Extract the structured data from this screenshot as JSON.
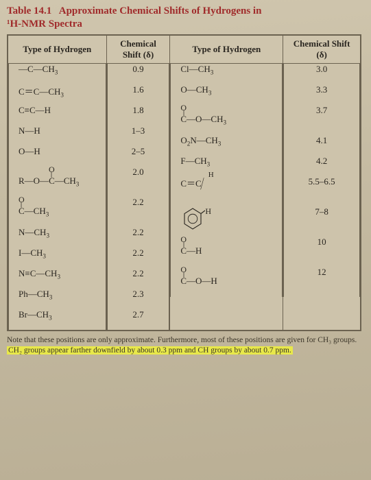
{
  "title_prefix": "Table 14.1",
  "title_rest": "Approximate Chemical Shifts of Hydrogens in",
  "subtitle": "¹H-NMR Spectra",
  "headers": {
    "col1": "Type of Hydrogen",
    "col2": "Chemical Shift (δ)",
    "col3": "Type of Hydrogen",
    "col4": "Chemical Shift (δ)"
  },
  "left": [
    {
      "formula": "—C—CH₃",
      "shift": "0.9"
    },
    {
      "formula": "C＝C—CH₃",
      "shift": "1.6"
    },
    {
      "formula": "C≡C—H",
      "shift": "1.8"
    },
    {
      "formula": "N—H",
      "shift": "1–3"
    },
    {
      "formula": "O—H",
      "shift": "2–5"
    },
    {
      "formula": "R—O—C(=O)—CH₃",
      "shift": "2.0",
      "carbonyl": true,
      "tall": true
    },
    {
      "formula": "C(=O)—CH₃",
      "shift": "2.2",
      "carbonyl": true,
      "tall": true
    },
    {
      "formula": "N—CH₃",
      "shift": "2.2"
    },
    {
      "formula": "I—CH₃",
      "shift": "2.2"
    },
    {
      "formula": "N≡C—CH₃",
      "shift": "2.2"
    },
    {
      "formula": "Ph—CH₃",
      "shift": "2.3"
    },
    {
      "formula": "Br—CH₃",
      "shift": "2.7"
    }
  ],
  "right": [
    {
      "formula": "Cl—CH₃",
      "shift": "3.0"
    },
    {
      "formula": "O—CH₃",
      "shift": "3.3"
    },
    {
      "formula": "C(=O)—O—CH₃",
      "shift": "3.7",
      "carbonyl": true,
      "tall": true
    },
    {
      "formula": "O₂N—CH₃",
      "shift": "4.1"
    },
    {
      "formula": "F—CH₃",
      "shift": "4.2"
    },
    {
      "formula": "vinyl",
      "shift": "5.5–6.5",
      "tall": true
    },
    {
      "formula": "benzene",
      "shift": "7–8",
      "tall": true
    },
    {
      "formula": "C(=O)—H",
      "shift": "10",
      "carbonyl": true,
      "tall": true
    },
    {
      "formula": "C(=O)—O—H",
      "shift": "12",
      "carbonyl": true,
      "tall": true
    }
  ],
  "note_line1": "Note that these positions are only approximate. Furthermore, most of these positions are given for CH₃ groups.",
  "note_hl": "CH₂ groups appear farther downfield by about 0.3 ppm and CH groups by about 0.7 ppm."
}
